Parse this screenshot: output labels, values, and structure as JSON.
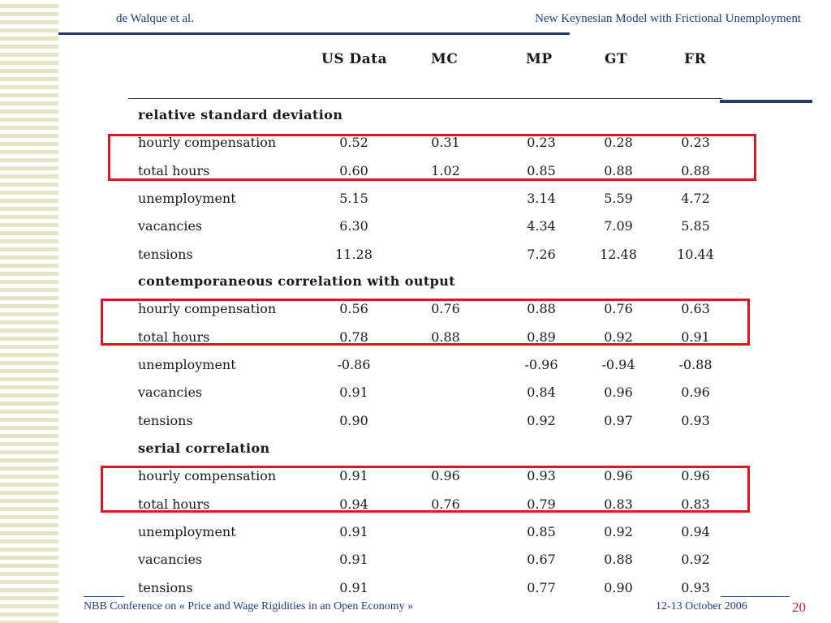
{
  "header": {
    "left": "de Walque et al.",
    "right": "New Keynesian Model  with Frictional Unemployment"
  },
  "columns": [
    "US Data",
    "MC",
    "MP",
    "GT",
    "FR"
  ],
  "sections": [
    {
      "title": "relative standard deviation",
      "rows": [
        {
          "label": "hourly compensation",
          "values": [
            "0.52",
            "0.31",
            "0.23",
            "0.28",
            "0.23"
          ]
        },
        {
          "label": "total hours",
          "values": [
            "0.60",
            "1.02",
            "0.85",
            "0.88",
            "0.88"
          ]
        },
        {
          "label": "unemployment",
          "values": [
            "5.15",
            "",
            "3.14",
            "5.59",
            "4.72"
          ]
        },
        {
          "label": "vacancies",
          "values": [
            "6.30",
            "",
            "4.34",
            "7.09",
            "5.85"
          ]
        },
        {
          "label": "tensions",
          "values": [
            "11.28",
            "",
            "7.26",
            "12.48",
            "10.44"
          ]
        }
      ]
    },
    {
      "title": "contemporaneous correlation with output",
      "rows": [
        {
          "label": "hourly compensation",
          "values": [
            "0.56",
            "0.76",
            "0.88",
            "0.76",
            "0.63"
          ]
        },
        {
          "label": "total hours",
          "values": [
            "0.78",
            "0.88",
            "0.89",
            "0.92",
            "0.91"
          ]
        },
        {
          "label": "unemployment",
          "values": [
            "-0.86",
            "",
            "-0.96",
            "-0.94",
            "-0.88"
          ]
        },
        {
          "label": "vacancies",
          "values": [
            "0.91",
            "",
            "0.84",
            "0.96",
            "0.96"
          ]
        },
        {
          "label": "tensions",
          "values": [
            "0.90",
            "",
            "0.92",
            "0.97",
            "0.93"
          ]
        }
      ]
    },
    {
      "title": "serial correlation",
      "rows": [
        {
          "label": "hourly compensation",
          "values": [
            "0.91",
            "0.96",
            "0.93",
            "0.96",
            "0.96"
          ]
        },
        {
          "label": "total hours",
          "values": [
            "0.94",
            "0.76",
            "0.79",
            "0.83",
            "0.83"
          ]
        },
        {
          "label": "unemployment",
          "values": [
            "0.91",
            "",
            "0.85",
            "0.92",
            "0.94"
          ]
        },
        {
          "label": "vacancies",
          "values": [
            "0.91",
            "",
            "0.67",
            "0.88",
            "0.92"
          ]
        },
        {
          "label": "tensions",
          "values": [
            "0.91",
            "",
            "0.77",
            "0.90",
            "0.93"
          ]
        }
      ]
    }
  ],
  "footer": {
    "conference": "NBB Conference on « Price and Wage Rigidities in an Open Economy »",
    "date": "12-13 October 2006",
    "page": "20"
  },
  "colors": {
    "accent": "#1f3b86",
    "highlight": "#e0141e",
    "page_number": "#d22020"
  }
}
